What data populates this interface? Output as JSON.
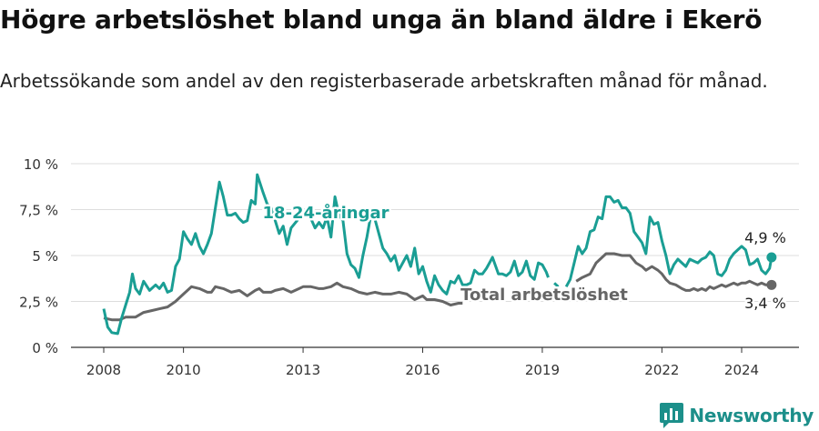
{
  "title": "Högre arbetslöshet bland unga än bland äldre i Ekerö",
  "subtitle": "Arbetssökande som andel av den registerbaserade arbetskraften månad för månad.",
  "brand": {
    "name": "Newsworthy",
    "color": "#1c8f8a"
  },
  "colors": {
    "youth": "#1a9e94",
    "total": "#666666",
    "grid": "#dddddd",
    "axis": "#333333"
  },
  "chart_data": {
    "type": "line",
    "title": "Högre arbetslöshet bland unga än bland äldre i Ekerö",
    "xlabel": "",
    "ylabel": "",
    "xlim": [
      2007.6,
      2025.6
    ],
    "ylim": [
      0,
      10
    ],
    "y_ticks": [
      0,
      2.5,
      5,
      7.5,
      10
    ],
    "y_tick_labels": [
      "0 %",
      "2,5 %",
      "5 %",
      "7,5 %",
      "10 %"
    ],
    "x_ticks": [
      2008,
      2010,
      2013,
      2016,
      2019,
      2022,
      2024
    ],
    "x_tick_labels": [
      "2008",
      "2010",
      "2013",
      "2016",
      "2019",
      "2022",
      "2024"
    ],
    "series": [
      {
        "name": "18-24-åringar",
        "label": "18-24-åringar",
        "end_label": "4,9 %",
        "values": [
          [
            2008.0,
            2.1
          ],
          [
            2008.1,
            1.1
          ],
          [
            2008.2,
            0.8
          ],
          [
            2008.35,
            0.75
          ],
          [
            2008.45,
            1.6
          ],
          [
            2008.55,
            2.3
          ],
          [
            2008.65,
            3.0
          ],
          [
            2008.72,
            4.0
          ],
          [
            2008.8,
            3.2
          ],
          [
            2008.9,
            2.9
          ],
          [
            2009.0,
            3.6
          ],
          [
            2009.15,
            3.1
          ],
          [
            2009.3,
            3.4
          ],
          [
            2009.4,
            3.2
          ],
          [
            2009.5,
            3.5
          ],
          [
            2009.6,
            3.0
          ],
          [
            2009.7,
            3.1
          ],
          [
            2009.8,
            4.4
          ],
          [
            2009.9,
            4.8
          ],
          [
            2010.0,
            6.3
          ],
          [
            2010.1,
            5.9
          ],
          [
            2010.2,
            5.6
          ],
          [
            2010.3,
            6.2
          ],
          [
            2010.4,
            5.5
          ],
          [
            2010.5,
            5.1
          ],
          [
            2010.6,
            5.6
          ],
          [
            2010.7,
            6.2
          ],
          [
            2010.8,
            7.6
          ],
          [
            2010.9,
            9.0
          ],
          [
            2011.0,
            8.2
          ],
          [
            2011.1,
            7.2
          ],
          [
            2011.2,
            7.2
          ],
          [
            2011.3,
            7.3
          ],
          [
            2011.4,
            7.0
          ],
          [
            2011.5,
            6.8
          ],
          [
            2011.6,
            6.9
          ],
          [
            2011.7,
            8.0
          ],
          [
            2011.8,
            7.8
          ],
          [
            2011.85,
            9.4
          ],
          [
            2012.0,
            8.4
          ],
          [
            2012.1,
            7.8
          ],
          [
            2012.2,
            7.6
          ],
          [
            2012.3,
            6.9
          ],
          [
            2012.4,
            6.2
          ],
          [
            2012.5,
            6.6
          ],
          [
            2012.6,
            5.6
          ],
          [
            2012.7,
            6.5
          ],
          [
            2012.85,
            6.9
          ],
          [
            2013.0,
            7.5
          ],
          [
            2013.1,
            7.4
          ],
          [
            2013.2,
            7.0
          ],
          [
            2013.3,
            6.5
          ],
          [
            2013.4,
            6.8
          ],
          [
            2013.5,
            6.5
          ],
          [
            2013.6,
            7.1
          ],
          [
            2013.7,
            6.0
          ],
          [
            2013.8,
            8.2
          ],
          [
            2013.9,
            7.2
          ],
          [
            2014.0,
            6.9
          ],
          [
            2014.1,
            5.1
          ],
          [
            2014.2,
            4.5
          ],
          [
            2014.3,
            4.3
          ],
          [
            2014.4,
            3.8
          ],
          [
            2014.5,
            5.0
          ],
          [
            2014.6,
            6.0
          ],
          [
            2014.7,
            7.2
          ],
          [
            2014.8,
            7.0
          ],
          [
            2014.9,
            6.2
          ],
          [
            2015.0,
            5.4
          ],
          [
            2015.1,
            5.1
          ],
          [
            2015.2,
            4.7
          ],
          [
            2015.3,
            5.0
          ],
          [
            2015.4,
            4.2
          ],
          [
            2015.5,
            4.6
          ],
          [
            2015.6,
            5.0
          ],
          [
            2015.7,
            4.4
          ],
          [
            2015.8,
            5.4
          ],
          [
            2015.9,
            4.0
          ],
          [
            2016.0,
            4.4
          ],
          [
            2016.1,
            3.6
          ],
          [
            2016.2,
            3.0
          ],
          [
            2016.3,
            3.9
          ],
          [
            2016.4,
            3.4
          ],
          [
            2016.5,
            3.1
          ],
          [
            2016.6,
            2.9
          ],
          [
            2016.7,
            3.6
          ],
          [
            2016.8,
            3.5
          ],
          [
            2016.9,
            3.9
          ],
          [
            2017.0,
            3.4
          ],
          [
            2017.1,
            3.4
          ],
          [
            2017.2,
            3.5
          ],
          [
            2017.3,
            4.2
          ],
          [
            2017.4,
            4.0
          ],
          [
            2017.5,
            4.0
          ],
          [
            2017.6,
            4.3
          ],
          [
            2017.7,
            4.7
          ],
          [
            2017.75,
            4.9
          ],
          [
            2017.9,
            4.0
          ],
          [
            2018.0,
            4.0
          ],
          [
            2018.1,
            3.9
          ],
          [
            2018.2,
            4.1
          ],
          [
            2018.3,
            4.7
          ],
          [
            2018.4,
            3.9
          ],
          [
            2018.5,
            4.1
          ],
          [
            2018.6,
            4.7
          ],
          [
            2018.7,
            3.9
          ],
          [
            2018.8,
            3.7
          ],
          [
            2018.9,
            4.6
          ],
          [
            2019.0,
            4.5
          ],
          [
            2019.1,
            4.1
          ],
          [
            2019.15,
            3.8
          ],
          null,
          [
            2019.3,
            3.5
          ],
          [
            2019.4,
            3.3
          ],
          null,
          [
            2019.6,
            3.3
          ],
          [
            2019.7,
            3.7
          ],
          [
            2019.8,
            4.6
          ],
          [
            2019.9,
            5.5
          ],
          [
            2020.0,
            5.1
          ],
          [
            2020.1,
            5.4
          ],
          [
            2020.2,
            6.3
          ],
          [
            2020.3,
            6.4
          ],
          [
            2020.4,
            7.1
          ],
          [
            2020.5,
            7.0
          ],
          [
            2020.6,
            8.2
          ],
          [
            2020.7,
            8.2
          ],
          [
            2020.8,
            7.9
          ],
          [
            2020.9,
            8.0
          ],
          [
            2021.0,
            7.6
          ],
          [
            2021.1,
            7.6
          ],
          [
            2021.2,
            7.3
          ],
          [
            2021.3,
            6.3
          ],
          [
            2021.4,
            6.0
          ],
          [
            2021.5,
            5.7
          ],
          [
            2021.6,
            5.1
          ],
          [
            2021.7,
            7.1
          ],
          [
            2021.8,
            6.7
          ],
          [
            2021.9,
            6.8
          ],
          [
            2022.0,
            5.8
          ],
          [
            2022.1,
            5.0
          ],
          [
            2022.2,
            4.0
          ],
          [
            2022.3,
            4.5
          ],
          [
            2022.4,
            4.8
          ],
          [
            2022.5,
            4.6
          ],
          [
            2022.6,
            4.4
          ],
          [
            2022.7,
            4.8
          ],
          [
            2022.8,
            4.7
          ],
          [
            2022.9,
            4.6
          ],
          [
            2023.0,
            4.8
          ],
          [
            2023.1,
            4.9
          ],
          [
            2023.2,
            5.2
          ],
          [
            2023.3,
            5.0
          ],
          [
            2023.4,
            4.0
          ],
          [
            2023.5,
            3.9
          ],
          [
            2023.6,
            4.2
          ],
          [
            2023.7,
            4.8
          ],
          [
            2023.8,
            5.1
          ],
          [
            2023.9,
            5.3
          ],
          [
            2024.0,
            5.5
          ],
          [
            2024.1,
            5.3
          ],
          [
            2024.2,
            4.5
          ],
          [
            2024.3,
            4.6
          ],
          [
            2024.4,
            4.8
          ],
          [
            2024.5,
            4.2
          ],
          [
            2024.6,
            4.0
          ],
          [
            2024.7,
            4.3
          ],
          [
            2024.75,
            4.9
          ]
        ]
      },
      {
        "name": "Total arbetslöshet",
        "label": "Total arbetslöshet",
        "end_label": "3,4 %",
        "values": [
          [
            2008.0,
            1.6
          ],
          [
            2008.2,
            1.5
          ],
          [
            2008.4,
            1.5
          ],
          [
            2008.55,
            1.65
          ],
          [
            2008.8,
            1.65
          ],
          [
            2009.0,
            1.9
          ],
          [
            2009.2,
            2.0
          ],
          [
            2009.4,
            2.1
          ],
          [
            2009.6,
            2.2
          ],
          [
            2009.8,
            2.5
          ],
          [
            2010.0,
            2.9
          ],
          [
            2010.1,
            3.1
          ],
          [
            2010.2,
            3.3
          ],
          [
            2010.4,
            3.2
          ],
          [
            2010.6,
            3.0
          ],
          [
            2010.7,
            3.0
          ],
          [
            2010.8,
            3.3
          ],
          [
            2011.0,
            3.2
          ],
          [
            2011.2,
            3.0
          ],
          [
            2011.4,
            3.1
          ],
          [
            2011.6,
            2.8
          ],
          [
            2011.8,
            3.1
          ],
          [
            2011.9,
            3.2
          ],
          [
            2012.0,
            3.0
          ],
          [
            2012.2,
            3.0
          ],
          [
            2012.3,
            3.1
          ],
          [
            2012.5,
            3.2
          ],
          [
            2012.7,
            3.0
          ],
          [
            2012.9,
            3.2
          ],
          [
            2013.0,
            3.3
          ],
          [
            2013.2,
            3.3
          ],
          [
            2013.4,
            3.2
          ],
          [
            2013.5,
            3.2
          ],
          [
            2013.7,
            3.3
          ],
          [
            2013.85,
            3.5
          ],
          [
            2014.0,
            3.3
          ],
          [
            2014.2,
            3.2
          ],
          [
            2014.4,
            3.0
          ],
          [
            2014.6,
            2.9
          ],
          [
            2014.8,
            3.0
          ],
          [
            2015.0,
            2.9
          ],
          [
            2015.2,
            2.9
          ],
          [
            2015.4,
            3.0
          ],
          [
            2015.6,
            2.9
          ],
          [
            2015.8,
            2.6
          ],
          [
            2016.0,
            2.8
          ],
          [
            2016.1,
            2.6
          ],
          [
            2016.3,
            2.6
          ],
          [
            2016.5,
            2.5
          ],
          [
            2016.7,
            2.3
          ],
          [
            2016.9,
            2.4
          ],
          [
            2017.0,
            2.4
          ]
        ],
        "values_2": [
          [
            2019.85,
            3.6
          ],
          [
            2020.0,
            3.8
          ],
          [
            2020.2,
            4.0
          ],
          [
            2020.35,
            4.6
          ],
          [
            2020.5,
            4.9
          ],
          [
            2020.6,
            5.1
          ],
          [
            2020.8,
            5.1
          ],
          [
            2021.0,
            5.0
          ],
          [
            2021.2,
            5.0
          ],
          [
            2021.35,
            4.6
          ],
          [
            2021.5,
            4.4
          ],
          [
            2021.6,
            4.2
          ],
          [
            2021.75,
            4.4
          ],
          [
            2021.9,
            4.2
          ],
          [
            2022.0,
            4.0
          ],
          [
            2022.1,
            3.7
          ],
          [
            2022.2,
            3.5
          ],
          [
            2022.35,
            3.4
          ],
          [
            2022.5,
            3.2
          ],
          [
            2022.6,
            3.1
          ],
          [
            2022.7,
            3.1
          ],
          [
            2022.8,
            3.2
          ],
          [
            2022.9,
            3.1
          ],
          [
            2023.0,
            3.2
          ],
          [
            2023.1,
            3.1
          ],
          [
            2023.2,
            3.3
          ],
          [
            2023.3,
            3.2
          ],
          [
            2023.4,
            3.3
          ],
          [
            2023.5,
            3.4
          ],
          [
            2023.6,
            3.3
          ],
          [
            2023.7,
            3.4
          ],
          [
            2023.8,
            3.5
          ],
          [
            2023.9,
            3.4
          ],
          [
            2024.0,
            3.5
          ],
          [
            2024.1,
            3.5
          ],
          [
            2024.2,
            3.6
          ],
          [
            2024.3,
            3.5
          ],
          [
            2024.4,
            3.4
          ],
          [
            2024.5,
            3.5
          ],
          [
            2024.6,
            3.4
          ],
          [
            2024.75,
            3.4
          ]
        ]
      }
    ]
  }
}
